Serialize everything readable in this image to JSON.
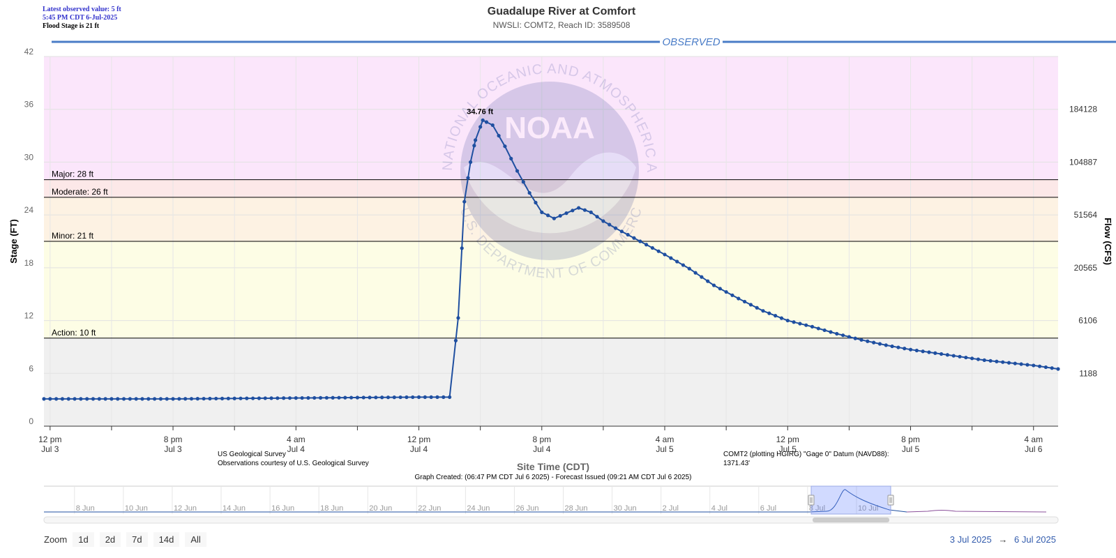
{
  "info": {
    "latest_value": "Latest observed value: 5 ft",
    "latest_time": "5:45 PM CDT 6-Jul-2025",
    "flood_stage": "Flood Stage is 21 ft"
  },
  "header": {
    "title": "Guadalupe River at Comfort",
    "subtitle": "NWSLI: COMT2, Reach ID: 3589508",
    "observed_label": "OBSERVED"
  },
  "footer": {
    "source_line1": "US Geological Survey",
    "source_line2": "Observations courtesy of U.S. Geological Survey",
    "datum_note": "COMT2 (plotting HGIRG) \"Gage 0\" Datum (NAVD88): 1371.43'",
    "created": "Graph Created: (06:47 PM CDT Jul 6 2025) - Forecast Issued (09:21 AM CDT Jul 6 2025)"
  },
  "zoom": {
    "label": "Zoom",
    "buttons": [
      "1d",
      "2d",
      "7d",
      "14d",
      "All"
    ]
  },
  "range": {
    "from": "3 Jul 2025",
    "arrow": "→",
    "to": "6 Jul 2025"
  },
  "watermark": {
    "logo_text": "NOAA",
    "top_arc": "NATIONAL OCEANIC AND ATMOSPHERIC ADMINISTRATION",
    "bottom_arc": "U.S. DEPARTMENT OF COMMERCE"
  },
  "colors": {
    "series": "#1f4fa0",
    "major_band": "#fbe6fb",
    "moderate_band": "#fce8e8",
    "minor_band": "#fdf2e3",
    "action_band": "#fdfde5",
    "normal_band": "#f0f0f0",
    "observed_line": "#4a7cc7"
  },
  "chart_data": {
    "type": "line",
    "title": "Guadalupe River at Comfort",
    "subtitle": "NWSLI: COMT2, Reach ID: 3589508",
    "xlabel": "Site Time (CDT)",
    "ylabel": "Stage (FT)",
    "y2label": "Flow (CFS)",
    "ylim": [
      0,
      42
    ],
    "y_ticks": [
      0,
      6,
      12,
      18,
      24,
      30,
      36,
      42
    ],
    "y2_ticks": [
      {
        "stage": 6,
        "label": "1188"
      },
      {
        "stage": 12,
        "label": "6106"
      },
      {
        "stage": 18,
        "label": "20565"
      },
      {
        "stage": 24,
        "label": "51564"
      },
      {
        "stage": 30,
        "label": "104887"
      },
      {
        "stage": 36,
        "label": "184128"
      }
    ],
    "xlim_hours": [
      -0.5,
      82
    ],
    "x_ticks": [
      {
        "hour": 0,
        "line1": "12 pm",
        "line2": "Jul 3"
      },
      {
        "hour": 5,
        "line1": "",
        "line2": ""
      },
      {
        "hour": 10,
        "line1": "8 pm",
        "line2": "Jul 3"
      },
      {
        "hour": 15,
        "line1": "",
        "line2": ""
      },
      {
        "hour": 20,
        "line1": "4 am",
        "line2": "Jul 4"
      },
      {
        "hour": 25,
        "line1": "",
        "line2": ""
      },
      {
        "hour": 30,
        "line1": "12 pm",
        "line2": "Jul 4"
      },
      {
        "hour": 35,
        "line1": "",
        "line2": ""
      },
      {
        "hour": 40,
        "line1": "8 pm",
        "line2": "Jul 4"
      },
      {
        "hour": 45,
        "line1": "",
        "line2": ""
      },
      {
        "hour": 50,
        "line1": "4 am",
        "line2": "Jul 5"
      },
      {
        "hour": 55,
        "line1": "",
        "line2": ""
      },
      {
        "hour": 60,
        "line1": "12 pm",
        "line2": "Jul 5"
      },
      {
        "hour": 65,
        "line1": "",
        "line2": ""
      },
      {
        "hour": 70,
        "line1": "8 pm",
        "line2": "Jul 5"
      },
      {
        "hour": 75,
        "line1": "",
        "line2": ""
      },
      {
        "hour": 80,
        "line1": "4 am",
        "line2": "Jul 6"
      }
    ],
    "thresholds": [
      {
        "name": "Major",
        "label": "Major: 28 ft",
        "value": 28
      },
      {
        "name": "Moderate",
        "label": "Moderate: 26 ft",
        "value": 26
      },
      {
        "name": "Minor",
        "label": "Minor: 21 ft",
        "value": 21
      },
      {
        "name": "Action",
        "label": "Action: 10 ft",
        "value": 10
      }
    ],
    "peak": {
      "hour": 35.2,
      "value": 34.76,
      "label": "34.76 ft"
    },
    "series": [
      {
        "name": "Observed",
        "x_hours": [
          -0.5,
          5,
          10,
          15,
          20,
          25,
          30,
          32.5,
          33.2,
          33.7,
          34.2,
          34.6,
          35.2,
          36,
          37,
          38,
          39,
          40,
          41,
          42,
          43,
          44,
          45,
          46,
          48,
          50,
          52,
          54,
          56,
          58,
          60,
          62,
          64,
          66,
          68,
          70,
          72,
          74,
          76,
          78,
          80,
          82
        ],
        "y": [
          3.1,
          3.1,
          3.1,
          3.15,
          3.2,
          3.25,
          3.3,
          3.3,
          12.3,
          25.5,
          30.0,
          32.5,
          34.76,
          34.2,
          31.8,
          29.0,
          26.5,
          24.3,
          23.6,
          24.2,
          24.8,
          24.3,
          23.3,
          22.5,
          21.0,
          19.5,
          17.9,
          16.0,
          14.5,
          13.1,
          12.0,
          11.3,
          10.5,
          9.8,
          9.2,
          8.7,
          8.3,
          7.9,
          7.5,
          7.2,
          6.9,
          6.5
        ]
      }
    ],
    "navigator": {
      "x_ticks": [
        "8 Jun",
        "10 Jun",
        "12 Jun",
        "14 Jun",
        "16 Jun",
        "18 Jun",
        "20 Jun",
        "22 Jun",
        "24 Jun",
        "26 Jun",
        "28 Jun",
        "30 Jun",
        "2 Jul",
        "4 Jul",
        "6 Jul",
        "8 Jul",
        "10 Jul"
      ]
    }
  }
}
